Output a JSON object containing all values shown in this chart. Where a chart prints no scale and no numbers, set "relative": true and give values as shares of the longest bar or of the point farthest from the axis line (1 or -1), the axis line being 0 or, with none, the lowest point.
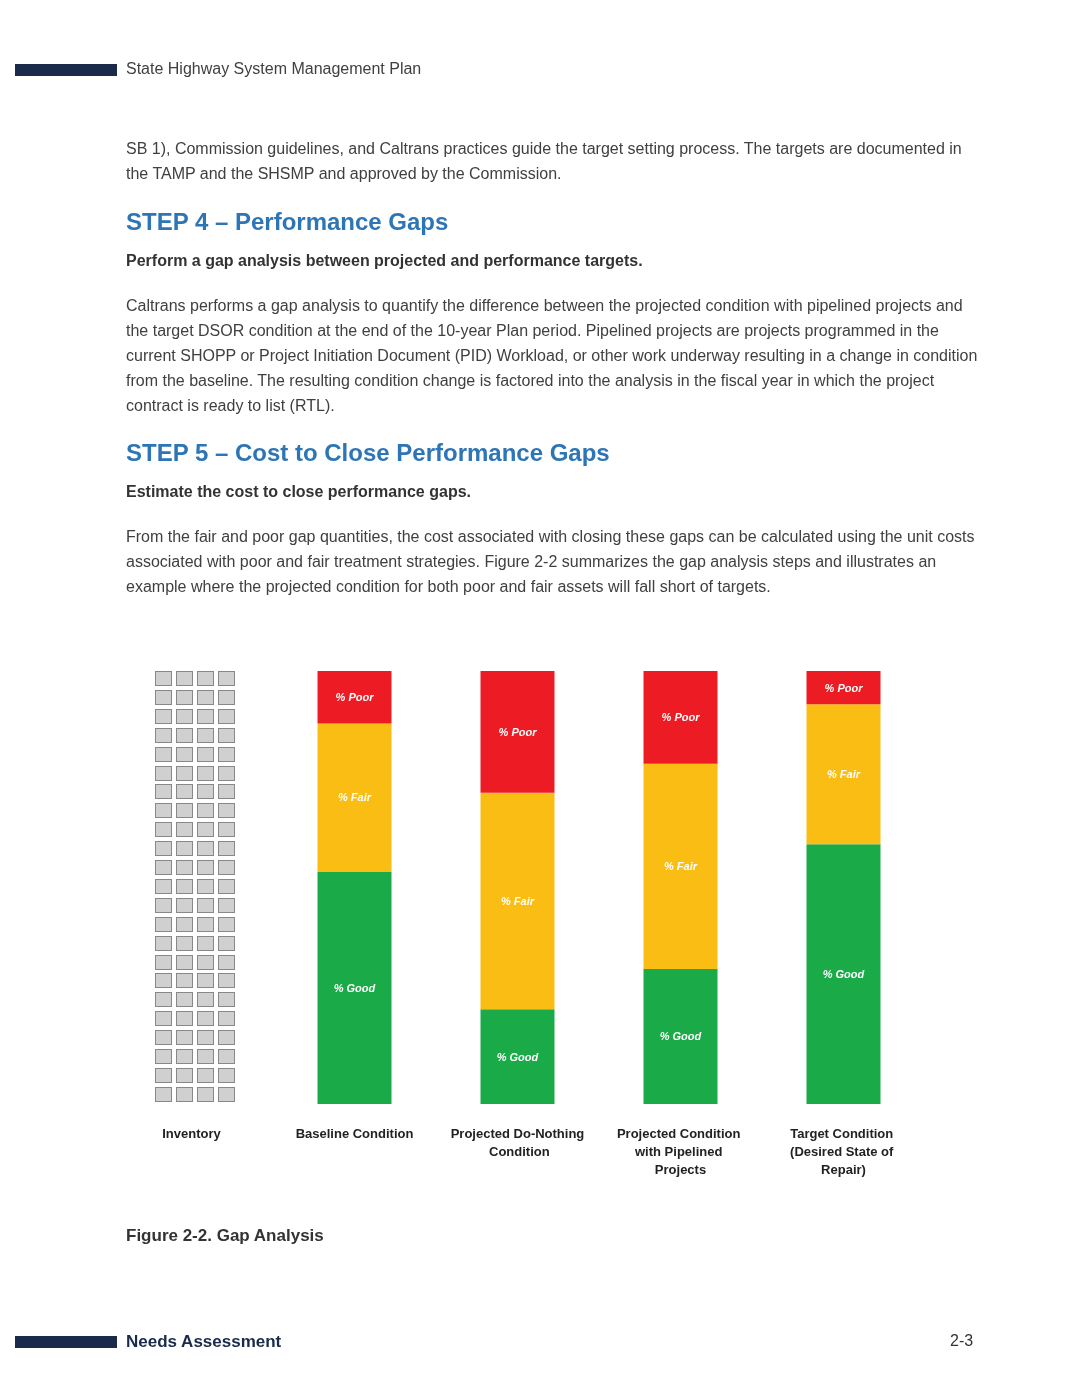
{
  "chart_data": {
    "type": "bar",
    "stacked": true,
    "relative": true,
    "legend": false,
    "categories": [
      "Inventory",
      "Baseline Condition",
      "Projected Do-Nothing Condition",
      "Projected Condition with Pipelined Projects",
      "Target Condition (Desired State of Repair)"
    ],
    "series": [
      {
        "name": "% Good",
        "color": "#1aaa48",
        "values": [
          null,
          0.537,
          0.219,
          0.312,
          0.6
        ]
      },
      {
        "name": "% Fair",
        "color": "#f9bd14",
        "values": [
          null,
          0.342,
          0.5,
          0.474,
          0.323
        ]
      },
      {
        "name": "% Poor",
        "color": "#ed1c24",
        "values": [
          null,
          0.121,
          0.281,
          0.214,
          0.077
        ]
      }
    ],
    "annotations": [
      "State Highway System Management Plan",
      "SB 1), Commission guidelines, and Caltrans practices guide the target setting process.  The targets are documented in the TAMP and the SHSMP and approved by the Commission.",
      "STEP 4 – Performance Gaps",
      "Perform a gap analysis between projected and performance targets.",
      "Caltrans performs a gap analysis to quantify the difference between the projected condition with pipelined projects and the target DSOR condition at the end of the 10-year Plan period.  Pipelined projects are projects programmed in the current SHOPP or Project Initiation Document (PID) Workload, or other work underway resulting in a change in condition from the baseline.  The resulting condition change is factored into the analysis in the fiscal year in which the project contract is ready to list (RTL).",
      "STEP 5 – Cost to Close Performance Gaps",
      "Estimate the cost to close performance gaps.",
      "From the fair and poor gap quantities, the cost associated with closing these gaps can be calculated using the unit costs associated with poor and fair treatment strategies.  Figure 2-2 summarizes the gap analysis steps and illustrates an example where the projected condition for both poor and fair assets will fall short of targets.",
      "Figure 2-2.  Gap Analysis",
      "Needs Assessment",
      "2-3"
    ]
  }
}
